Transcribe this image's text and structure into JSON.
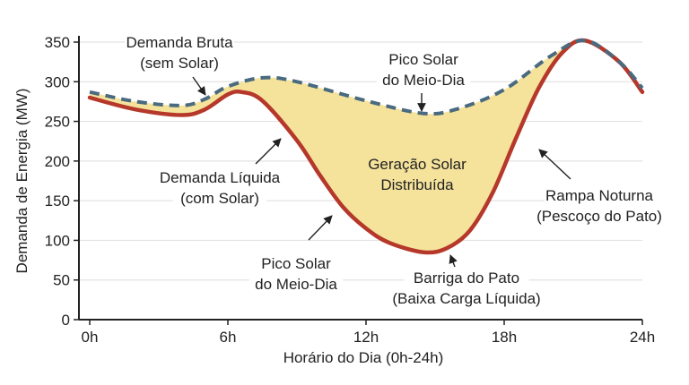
{
  "chart_data": {
    "type": "area",
    "title": "",
    "xlabel": "Horário do Dia (0h-24h)",
    "ylabel": "Demanda de Energia (MW)",
    "xlim": [
      0,
      24
    ],
    "ylim": [
      0,
      350
    ],
    "x_ticks": [
      0,
      6,
      12,
      18,
      24
    ],
    "x_tick_labels": [
      "0h",
      "6h",
      "12h",
      "18h",
      "24h"
    ],
    "y_ticks": [
      0,
      50,
      100,
      150,
      200,
      250,
      300,
      350
    ],
    "y_tick_labels": [
      "0",
      "50",
      "100",
      "150",
      "200",
      "250",
      "300",
      "350"
    ],
    "grid": true,
    "series": [
      {
        "key": "gross",
        "style": "dashed",
        "color": "#4a6a80",
        "points": [
          [
            0,
            287
          ],
          [
            2,
            275
          ],
          [
            4,
            270
          ],
          [
            5,
            278
          ],
          [
            6,
            294
          ],
          [
            7.5,
            305
          ],
          [
            9,
            300
          ],
          [
            12,
            276
          ],
          [
            14.5,
            260
          ],
          [
            16,
            266
          ],
          [
            18,
            290
          ],
          [
            20,
            332
          ],
          [
            21.5,
            352
          ],
          [
            23,
            325
          ],
          [
            24,
            292
          ]
        ]
      },
      {
        "key": "net",
        "style": "solid",
        "color": "#b5382a",
        "points": [
          [
            0,
            280
          ],
          [
            2,
            265
          ],
          [
            4,
            258
          ],
          [
            5,
            265
          ],
          [
            6,
            284
          ],
          [
            6.6,
            287
          ],
          [
            7.5,
            276
          ],
          [
            9,
            226
          ],
          [
            10,
            182
          ],
          [
            11,
            142
          ],
          [
            12,
            115
          ],
          [
            13,
            97
          ],
          [
            14.5,
            85
          ],
          [
            15.5,
            90
          ],
          [
            16.5,
            112
          ],
          [
            17.5,
            160
          ],
          [
            18.5,
            228
          ],
          [
            19.5,
            292
          ],
          [
            20.5,
            336
          ],
          [
            21.5,
            352
          ],
          [
            23,
            325
          ],
          [
            24,
            287
          ]
        ]
      }
    ],
    "fill_between_color": "#f5e39c",
    "annotations": [
      {
        "lines": [
          "Demanda Bruta",
          "(sem Solar)"
        ]
      },
      {
        "lines": [
          "Pico Solar",
          "do Meio-Dia"
        ]
      },
      {
        "lines": [
          "Demanda Líquida",
          "(com Solar)"
        ]
      },
      {
        "lines": [
          "Geração Solar",
          "Distribuída"
        ]
      },
      {
        "lines": [
          "Rampa Noturna",
          "(Pescoço do Pato)"
        ]
      },
      {
        "lines": [
          "Pico Solar",
          "do Meio-Dia"
        ]
      },
      {
        "lines": [
          "Barriga do Pato",
          "(Baixa Carga Líquida)"
        ]
      }
    ]
  }
}
